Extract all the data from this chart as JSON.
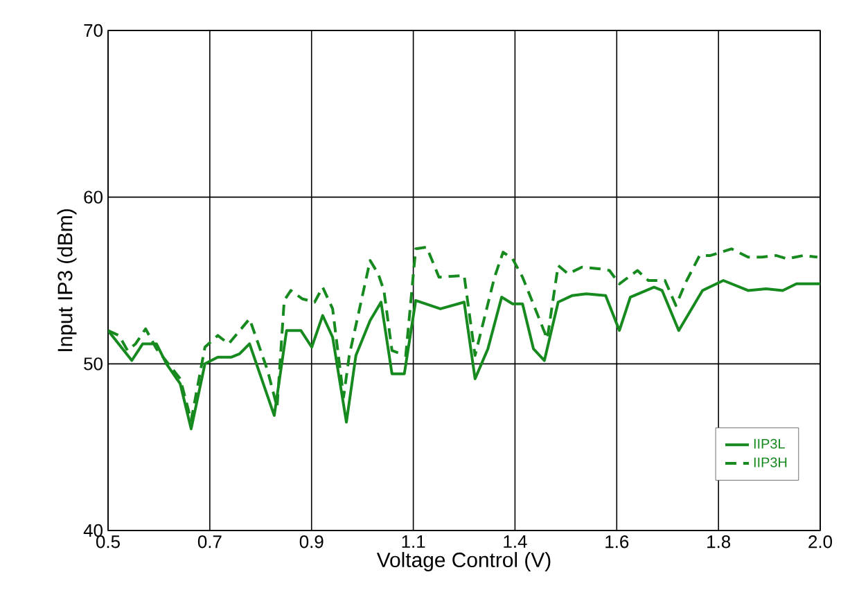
{
  "chart_data": {
    "type": "line",
    "xlabel": "Voltage Control (V)",
    "ylabel": "Input IP3 (dBm)",
    "xlim": [
      0.5,
      2.0
    ],
    "ylim": [
      40,
      70
    ],
    "xticks": [
      {
        "value": 0.5,
        "label": "0.5"
      },
      {
        "value": 0.7143,
        "label": "0.7"
      },
      {
        "value": 0.9286,
        "label": "0.9"
      },
      {
        "value": 1.1429,
        "label": "1.1"
      },
      {
        "value": 1.3571,
        "label": "1.4"
      },
      {
        "value": 1.5714,
        "label": "1.6"
      },
      {
        "value": 1.7857,
        "label": "1.8"
      },
      {
        "value": 2.0,
        "label": "2.0"
      }
    ],
    "yticks": [
      40,
      50,
      60,
      70
    ],
    "grid": true,
    "legend": "bottom right",
    "marker": "none",
    "series": [
      {
        "name": "IIP3L",
        "color": "#168a1e",
        "line_style": "solid",
        "x": [
          0.5,
          0.55,
          0.573,
          0.602,
          0.623,
          0.652,
          0.675,
          0.704,
          0.731,
          0.76,
          0.777,
          0.798,
          0.85,
          0.876,
          0.906,
          0.929,
          0.952,
          0.973,
          1.002,
          1.022,
          1.052,
          1.075,
          1.098,
          1.124,
          1.148,
          1.2,
          1.25,
          1.273,
          1.3,
          1.329,
          1.352,
          1.373,
          1.396,
          1.419,
          1.448,
          1.478,
          1.507,
          1.548,
          1.577,
          1.6,
          1.65,
          1.667,
          1.702,
          1.752,
          1.796,
          1.848,
          1.886,
          1.921,
          1.95,
          2.0
        ],
        "values": [
          52.0,
          50.2,
          51.2,
          51.2,
          50.0,
          48.8,
          46.1,
          50.0,
          50.4,
          50.4,
          50.6,
          51.2,
          46.9,
          52.0,
          52.0,
          51.0,
          52.9,
          51.6,
          46.5,
          50.5,
          52.6,
          53.7,
          49.4,
          49.4,
          53.8,
          53.3,
          53.7,
          49.1,
          50.9,
          54.0,
          53.6,
          53.6,
          50.9,
          50.2,
          53.7,
          54.1,
          54.2,
          54.1,
          52.0,
          54.0,
          54.6,
          54.4,
          52.0,
          54.4,
          55.0,
          54.4,
          54.5,
          54.4,
          54.8,
          54.8
        ]
      },
      {
        "name": "IIP3H",
        "color": "#168a1e",
        "line_style": "dashed",
        "x": [
          0.5,
          0.523,
          0.541,
          0.558,
          0.579,
          0.602,
          0.652,
          0.675,
          0.704,
          0.731,
          0.754,
          0.798,
          0.836,
          0.856,
          0.871,
          0.885,
          0.909,
          0.935,
          0.952,
          0.973,
          0.996,
          1.008,
          1.052,
          1.069,
          1.081,
          1.098,
          1.127,
          1.148,
          1.171,
          1.197,
          1.25,
          1.273,
          1.314,
          1.332,
          1.352,
          1.373,
          1.425,
          1.448,
          1.469,
          1.498,
          1.536,
          1.556,
          1.577,
          1.615,
          1.638,
          1.673,
          1.696,
          1.717,
          1.746,
          1.769,
          1.813,
          1.848,
          1.877,
          1.907,
          1.93,
          1.965,
          1.994
        ],
        "values": [
          52.0,
          51.7,
          50.8,
          51.2,
          52.1,
          50.9,
          49.1,
          46.6,
          51.0,
          51.7,
          51.2,
          52.7,
          49.6,
          47.4,
          53.8,
          54.4,
          53.9,
          53.7,
          54.6,
          53.3,
          48.0,
          50.5,
          56.2,
          55.4,
          54.4,
          50.8,
          50.5,
          56.9,
          57.0,
          55.2,
          55.3,
          50.5,
          55.2,
          56.7,
          56.3,
          55.2,
          51.5,
          55.9,
          55.4,
          55.8,
          55.7,
          55.6,
          54.8,
          55.6,
          55.0,
          55.0,
          53.5,
          54.9,
          56.5,
          56.5,
          56.9,
          56.4,
          56.4,
          56.5,
          56.3,
          56.5,
          56.4
        ]
      }
    ]
  }
}
